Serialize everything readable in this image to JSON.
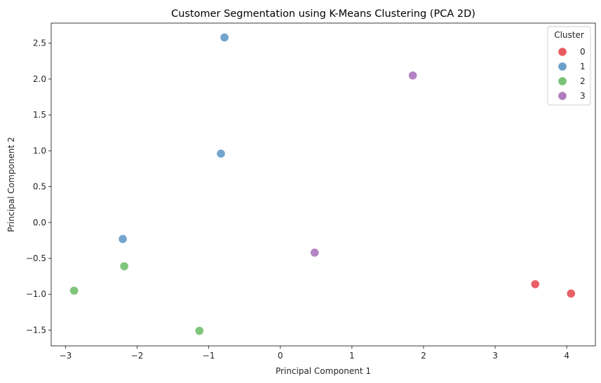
{
  "chart_data": {
    "type": "scatter",
    "title": "Customer Segmentation using K-Means Clustering (PCA 2D)",
    "xlabel": "Principal Component 1",
    "ylabel": "Principal Component 2",
    "xlim": [
      -3.2,
      4.4
    ],
    "ylim": [
      -1.72,
      2.78
    ],
    "xticks": [
      -3,
      -2,
      -1,
      0,
      1,
      2,
      3,
      4
    ],
    "xtick_labels": [
      "−3",
      "−2",
      "−1",
      "0",
      "1",
      "2",
      "3",
      "4"
    ],
    "yticks": [
      -1.5,
      -1.0,
      -0.5,
      0.0,
      0.5,
      1.0,
      1.5,
      2.0,
      2.5
    ],
    "ytick_labels": [
      "−1.5",
      "−1.0",
      "−0.5",
      "0.0",
      "0.5",
      "1.0",
      "1.5",
      "2.0",
      "2.5"
    ],
    "grid": false,
    "legend": {
      "title": "Cluster",
      "placement": "top-right"
    },
    "series": [
      {
        "name": "0",
        "color": "#e9595e",
        "points": [
          [
            3.56,
            -0.86
          ],
          [
            4.06,
            -0.99
          ]
        ]
      },
      {
        "name": "1",
        "color": "#6b9fcb",
        "points": [
          [
            -0.78,
            2.58
          ],
          [
            -0.83,
            0.96
          ],
          [
            -2.2,
            -0.23
          ]
        ]
      },
      {
        "name": "2",
        "color": "#79c275",
        "points": [
          [
            -2.88,
            -0.95
          ],
          [
            -2.18,
            -0.61
          ],
          [
            -1.13,
            -1.51
          ]
        ]
      },
      {
        "name": "3",
        "color": "#b07cbf",
        "points": [
          [
            1.85,
            2.05
          ],
          [
            0.48,
            -0.42
          ]
        ]
      }
    ]
  }
}
